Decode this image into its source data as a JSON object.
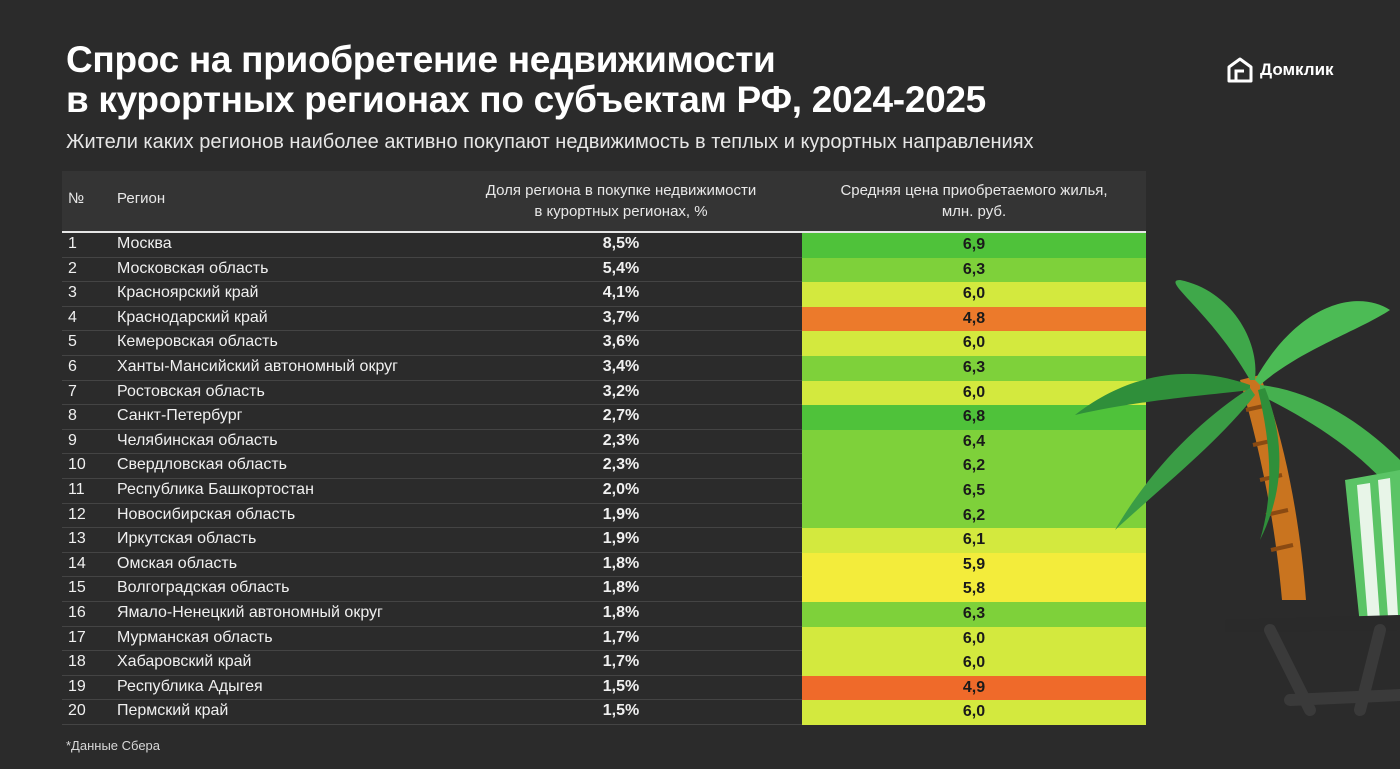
{
  "header": {
    "title_line1": "Спрос на приобретение недвижимости",
    "title_line2": "в курортных регионах по субъектам РФ, 2024-2025",
    "subtitle": "Жители каких регионов наиболее активно покупают недвижимость в теплых и курортных направлениях",
    "logo": "Домклик"
  },
  "columns": {
    "num": "№",
    "region": "Регион",
    "share_line1": "Доля региона в покупке недвижимости",
    "share_line2": "в курортных регионах, %",
    "price_line1": "Средняя цена приобретаемого жилья,",
    "price_line2": "млн. руб."
  },
  "footnote": "*Данные Сбера",
  "colors": {
    "background": "#2b2b2b",
    "green": "#5cc93a",
    "light_green": "#a6df3a",
    "yellow": "#f3ec3b",
    "orange": "#ec7a2b"
  },
  "chart_data": {
    "type": "table",
    "columns": [
      "№",
      "Регион",
      "Доля региона в покупке недвижимости в курортных регионах, %",
      "Средняя цена приобретаемого жилья, млн. руб."
    ],
    "rows": [
      {
        "num": "1",
        "region": "Москва",
        "share": "8,5%",
        "price": "6,9",
        "price_value": 6.9
      },
      {
        "num": "2",
        "region": "Московская область",
        "share": "5,4%",
        "price": "6,3",
        "price_value": 6.3
      },
      {
        "num": "3",
        "region": "Красноярский край",
        "share": "4,1%",
        "price": "6,0",
        "price_value": 6.0
      },
      {
        "num": "4",
        "region": "Краснодарский край",
        "share": "3,7%",
        "price": "4,8",
        "price_value": 4.8
      },
      {
        "num": "5",
        "region": "Кемеровская область",
        "share": "3,6%",
        "price": "6,0",
        "price_value": 6.0
      },
      {
        "num": "6",
        "region": "Ханты-Мансийский автономный округ",
        "share": "3,4%",
        "price": "6,3",
        "price_value": 6.3
      },
      {
        "num": "7",
        "region": "Ростовская область",
        "share": "3,2%",
        "price": "6,0",
        "price_value": 6.0
      },
      {
        "num": "8",
        "region": "Санкт-Петербург",
        "share": "2,7%",
        "price": "6,8",
        "price_value": 6.8
      },
      {
        "num": "9",
        "region": "Челябинская область",
        "share": "2,3%",
        "price": "6,4",
        "price_value": 6.4
      },
      {
        "num": "10",
        "region": "Свердловская область",
        "share": "2,3%",
        "price": "6,2",
        "price_value": 6.2
      },
      {
        "num": "11",
        "region": "Республика Башкортостан",
        "share": "2,0%",
        "price": "6,5",
        "price_value": 6.5
      },
      {
        "num": "12",
        "region": "Новосибирская область",
        "share": "1,9%",
        "price": "6,2",
        "price_value": 6.2
      },
      {
        "num": "13",
        "region": "Иркутская область",
        "share": "1,9%",
        "price": "6,1",
        "price_value": 6.1
      },
      {
        "num": "14",
        "region": "Омская область",
        "share": "1,8%",
        "price": "5,9",
        "price_value": 5.9
      },
      {
        "num": "15",
        "region": "Волгоградская область",
        "share": "1,8%",
        "price": "5,8",
        "price_value": 5.8
      },
      {
        "num": "16",
        "region": "Ямало-Ненецкий автономный округ",
        "share": "1,8%",
        "price": "6,3",
        "price_value": 6.3
      },
      {
        "num": "17",
        "region": "Мурманская область",
        "share": "1,7%",
        "price": "6,0",
        "price_value": 6.0
      },
      {
        "num": "18",
        "region": "Хабаровский край",
        "share": "1,7%",
        "price": "6,0",
        "price_value": 6.0
      },
      {
        "num": "19",
        "region": "Республика Адыгея",
        "share": "1,5%",
        "price": "4,9",
        "price_value": 4.9
      },
      {
        "num": "20",
        "region": "Пермский край",
        "share": "1,5%",
        "price": "6,0",
        "price_value": 6.0
      }
    ]
  }
}
